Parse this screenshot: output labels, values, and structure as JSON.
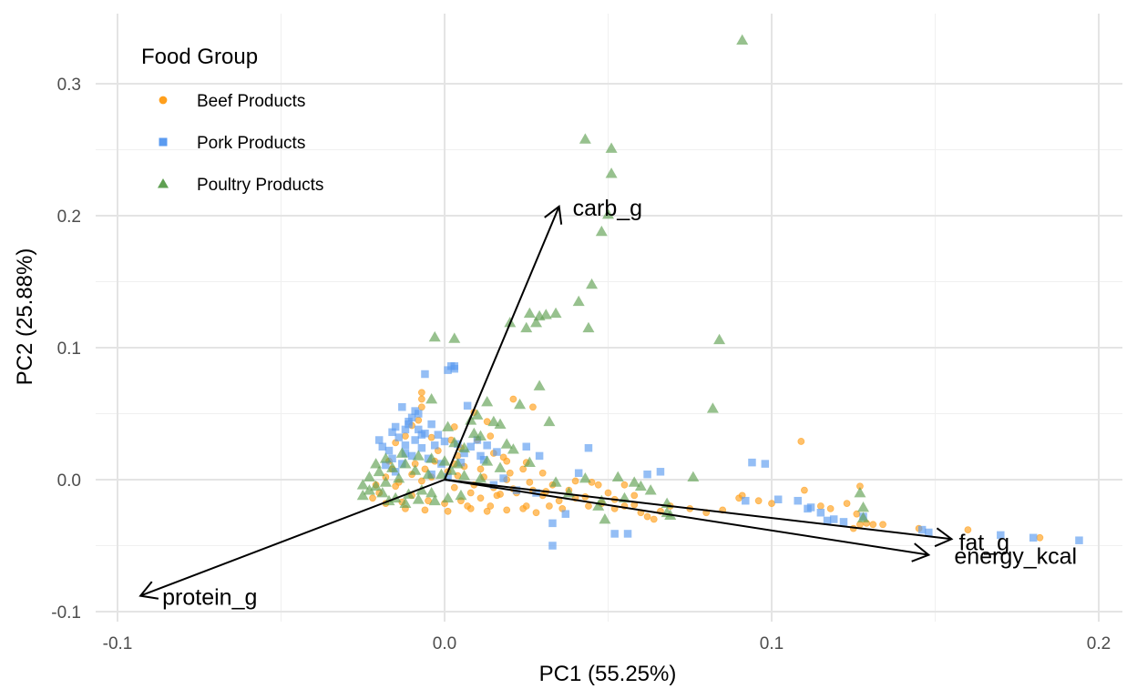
{
  "chart_data": {
    "type": "scatter",
    "subtype": "pca-biplot",
    "xlabel": "PC1 (55.25%)",
    "ylabel": "PC2 (25.88%)",
    "xlim": [
      -0.106,
      0.208
    ],
    "ylim": [
      -0.108,
      0.354
    ],
    "xticks": [
      -0.1,
      0.0,
      0.1,
      0.2
    ],
    "xtick_labels": [
      "-0.1",
      "0.0",
      "0.1",
      "0.2"
    ],
    "yticks": [
      -0.1,
      0.0,
      0.1,
      0.2,
      0.3
    ],
    "ytick_labels": [
      "-0.1",
      "0.0",
      "0.1",
      "0.2",
      "0.3"
    ],
    "grid": true,
    "legend": {
      "title": "Food Group",
      "position": "top-left",
      "entries": [
        "Beef Products",
        "Pork Products",
        "Poultry Products"
      ]
    },
    "series": [
      {
        "name": "Beef Products",
        "marker": "circle",
        "color": "#FF9F1C",
        "points": [
          [
            0.109,
            0.029
          ],
          [
            0.021,
            0.061
          ],
          [
            0.009,
            0.051
          ],
          [
            0.013,
            0.044
          ],
          [
            -0.007,
            0.066
          ],
          [
            -0.007,
            0.061
          ],
          [
            -0.007,
            0.055
          ],
          [
            0.025,
            0.013
          ],
          [
            0.03,
            0.005
          ],
          [
            0.04,
            -0.001
          ],
          [
            0.045,
            -0.002
          ],
          [
            0.047,
            -0.004
          ],
          [
            0.05,
            -0.01
          ],
          [
            0.055,
            -0.02
          ],
          [
            0.06,
            -0.025
          ],
          [
            0.062,
            -0.028
          ],
          [
            0.064,
            -0.03
          ],
          [
            0.035,
            -0.016
          ],
          [
            0.032,
            -0.02
          ],
          [
            0.028,
            -0.025
          ],
          [
            0.024,
            -0.022
          ],
          [
            0.09,
            -0.014
          ],
          [
            0.1,
            -0.018
          ],
          [
            0.11,
            -0.008
          ],
          [
            0.115,
            -0.02
          ],
          [
            0.118,
            -0.022
          ],
          [
            0.123,
            -0.018
          ],
          [
            0.126,
            -0.026
          ],
          [
            0.127,
            -0.034
          ],
          [
            0.129,
            -0.033
          ],
          [
            0.131,
            -0.034
          ],
          [
            0.145,
            -0.037
          ],
          [
            0.125,
            -0.037
          ],
          [
            0.127,
            -0.005
          ],
          [
            0.096,
            -0.016
          ],
          [
            0.055,
            -0.004
          ],
          [
            0.058,
            -0.012
          ],
          [
            0.015,
            0.02
          ],
          [
            0.018,
            0.017
          ],
          [
            0.005,
            0.024
          ],
          [
            0.01,
            0.03
          ],
          [
            0.003,
            0.04
          ],
          [
            -0.01,
            0.041
          ],
          [
            -0.015,
            0.028
          ],
          [
            -0.012,
            0.033
          ],
          [
            -0.004,
            0.032
          ],
          [
            0.002,
            0.03
          ],
          [
            -0.008,
            0.045
          ],
          [
            0.02,
            0.005
          ],
          [
            0.043,
            -0.013
          ],
          [
            0.048,
            -0.018
          ],
          [
            0.052,
            -0.015
          ],
          [
            0.069,
            -0.02
          ],
          [
            0.075,
            -0.022
          ],
          [
            0.08,
            -0.025
          ],
          [
            0.085,
            -0.023
          ],
          [
            0.027,
            0.055
          ],
          [
            0.014,
            0.033
          ],
          [
            0.003,
            0.012
          ],
          [
            0.008,
            -0.01
          ],
          [
            0.016,
            -0.012
          ],
          [
            0.022,
            -0.01
          ],
          [
            0.03,
            -0.012
          ],
          [
            0.038,
            -0.008
          ],
          [
            -0.018,
            0.002
          ],
          [
            -0.015,
            -0.005
          ],
          [
            -0.01,
            -0.012
          ],
          [
            -0.005,
            -0.016
          ],
          [
            0.0,
            -0.018
          ],
          [
            0.005,
            -0.016
          ],
          [
            0.011,
            -0.014
          ],
          [
            0.017,
            -0.011
          ],
          [
            -0.02,
            -0.01
          ],
          [
            -0.022,
            -0.014
          ],
          [
            -0.018,
            -0.018
          ],
          [
            -0.012,
            -0.022
          ],
          [
            -0.006,
            -0.023
          ],
          [
            0.001,
            -0.024
          ],
          [
            0.008,
            -0.022
          ],
          [
            0.014,
            -0.02
          ],
          [
            -0.016,
            0.008
          ],
          [
            -0.01,
            0.004
          ],
          [
            -0.004,
            0.002
          ],
          [
            0.004,
            0.003
          ],
          [
            0.012,
            0.002
          ],
          [
            0.019,
            0.0
          ],
          [
            0.026,
            -0.002
          ],
          [
            0.033,
            -0.004
          ],
          [
            -0.021,
            -0.004
          ],
          [
            -0.014,
            -0.002
          ],
          [
            -0.007,
            -0.001
          ],
          [
            0.003,
            -0.006
          ],
          [
            0.009,
            -0.004
          ],
          [
            0.015,
            -0.006
          ],
          [
            0.021,
            -0.007
          ],
          [
            0.027,
            -0.008
          ],
          [
            -0.009,
            0.012
          ],
          [
            -0.003,
            0.014
          ],
          [
            0.006,
            0.01
          ],
          [
            0.011,
            0.008
          ],
          [
            0.04,
            -0.014
          ],
          [
            0.044,
            -0.02
          ],
          [
            0.036,
            -0.022
          ],
          [
            0.031,
            -0.009
          ],
          [
            0.052,
            -0.022
          ],
          [
            0.058,
            -0.019
          ],
          [
            0.066,
            -0.024
          ],
          [
            0.019,
            0.014
          ],
          [
            -0.006,
            0.008
          ],
          [
            0.001,
            0.006
          ],
          [
            0.024,
            0.008
          ],
          [
            -0.017,
            0.014
          ],
          [
            0.007,
            -0.02
          ],
          [
            0.013,
            -0.024
          ],
          [
            0.019,
            -0.023
          ],
          [
            0.025,
            -0.02
          ],
          [
            -0.013,
            -0.017
          ],
          [
            0.004,
            0.018
          ],
          [
            -0.002,
            0.022
          ],
          [
            0.16,
            -0.038
          ],
          [
            0.134,
            -0.034
          ],
          [
            0.182,
            -0.044
          ],
          [
            0.091,
            -0.012
          ]
        ]
      },
      {
        "name": "Pork Products",
        "marker": "square",
        "color": "#5B9BF0",
        "points": [
          [
            0.002,
            0.086
          ],
          [
            0.003,
            0.086
          ],
          [
            0.001,
            0.083
          ],
          [
            0.003,
            0.084
          ],
          [
            -0.006,
            0.08
          ],
          [
            0.007,
            0.056
          ],
          [
            -0.013,
            0.055
          ],
          [
            -0.009,
            0.052
          ],
          [
            -0.008,
            0.05
          ],
          [
            -0.01,
            0.047
          ],
          [
            -0.011,
            0.042
          ],
          [
            -0.015,
            0.04
          ],
          [
            -0.012,
            0.038
          ],
          [
            -0.008,
            0.038
          ],
          [
            -0.004,
            0.042
          ],
          [
            -0.006,
            0.035
          ],
          [
            -0.009,
            0.03
          ],
          [
            -0.014,
            0.032
          ],
          [
            -0.019,
            0.025
          ],
          [
            -0.017,
            0.022
          ],
          [
            -0.012,
            0.026
          ],
          [
            -0.007,
            0.024
          ],
          [
            -0.003,
            0.026
          ],
          [
            0.0,
            0.029
          ],
          [
            0.004,
            0.027
          ],
          [
            0.008,
            0.025
          ],
          [
            0.01,
            0.03
          ],
          [
            0.013,
            0.026
          ],
          [
            0.016,
            0.021
          ],
          [
            0.025,
            0.025
          ],
          [
            0.044,
            0.024
          ],
          [
            0.098,
            0.012
          ],
          [
            0.094,
            0.013
          ],
          [
            0.066,
            0.006
          ],
          [
            0.062,
            0.004
          ],
          [
            0.092,
            -0.016
          ],
          [
            0.102,
            -0.015
          ],
          [
            0.108,
            -0.016
          ],
          [
            0.111,
            -0.022
          ],
          [
            0.112,
            -0.021
          ],
          [
            0.115,
            -0.025
          ],
          [
            0.117,
            -0.031
          ],
          [
            0.119,
            -0.03
          ],
          [
            0.122,
            -0.032
          ],
          [
            0.128,
            -0.028
          ],
          [
            0.146,
            -0.038
          ],
          [
            0.148,
            -0.04
          ],
          [
            0.17,
            -0.042
          ],
          [
            0.194,
            -0.046
          ],
          [
            0.18,
            -0.044
          ],
          [
            0.033,
            -0.033
          ],
          [
            0.037,
            -0.026
          ],
          [
            0.033,
            -0.05
          ],
          [
            0.052,
            -0.041
          ],
          [
            0.056,
            -0.041
          ],
          [
            0.018,
            0.001
          ],
          [
            -0.013,
            0.012
          ],
          [
            -0.018,
            0.011
          ],
          [
            -0.015,
            0.006
          ],
          [
            -0.01,
            0.018
          ],
          [
            -0.005,
            0.016
          ],
          [
            -0.001,
            0.012
          ],
          [
            0.005,
            0.013
          ],
          [
            -0.02,
            0.03
          ],
          [
            -0.016,
            0.036
          ],
          [
            -0.011,
            0.044
          ],
          [
            -0.007,
            0.034
          ],
          [
            -0.002,
            0.034
          ],
          [
            0.006,
            0.02
          ],
          [
            0.011,
            0.018
          ],
          [
            -0.016,
            0.016
          ],
          [
            -0.012,
            0.02
          ],
          [
            0.015,
            -0.004
          ],
          [
            0.022,
            -0.008
          ],
          [
            0.028,
            -0.01
          ],
          [
            0.029,
            0.018
          ],
          [
            0.041,
            0.005
          ],
          [
            0.012,
            0.015
          ],
          [
            -0.004,
            0.004
          ],
          [
            0.001,
            0.002
          ]
        ]
      },
      {
        "name": "Poultry Products",
        "marker": "triangle",
        "color": "#5FA052",
        "points": [
          [
            0.091,
            0.333
          ],
          [
            0.043,
            0.258
          ],
          [
            0.051,
            0.251
          ],
          [
            0.051,
            0.232
          ],
          [
            0.05,
            0.201
          ],
          [
            0.048,
            0.188
          ],
          [
            0.045,
            0.148
          ],
          [
            0.041,
            0.135
          ],
          [
            0.02,
            0.119
          ],
          [
            0.026,
            0.126
          ],
          [
            0.029,
            0.124
          ],
          [
            0.034,
            0.126
          ],
          [
            0.031,
            0.125
          ],
          [
            0.028,
            0.119
          ],
          [
            0.025,
            0.115
          ],
          [
            0.044,
            0.115
          ],
          [
            0.084,
            0.106
          ],
          [
            -0.003,
            0.108
          ],
          [
            0.003,
            0.107
          ],
          [
            0.082,
            0.054
          ],
          [
            0.029,
            0.071
          ],
          [
            0.023,
            0.057
          ],
          [
            -0.004,
            0.061
          ],
          [
            0.013,
            0.059
          ],
          [
            0.01,
            0.049
          ],
          [
            0.015,
            0.044
          ],
          [
            0.017,
            0.042
          ],
          [
            0.032,
            0.044
          ],
          [
            0.008,
            0.045
          ],
          [
            0.001,
            0.04
          ],
          [
            0.011,
            0.033
          ],
          [
            0.003,
            0.028
          ],
          [
            0.006,
            0.024
          ],
          [
            0.009,
            0.035
          ],
          [
            0.021,
            0.023
          ],
          [
            0.026,
            0.013
          ],
          [
            0.043,
            0.001
          ],
          [
            0.053,
            0.002
          ],
          [
            0.058,
            -0.002
          ],
          [
            0.06,
            -0.005
          ],
          [
            0.063,
            -0.008
          ],
          [
            0.068,
            -0.018
          ],
          [
            0.068,
            -0.025
          ],
          [
            0.069,
            -0.027
          ],
          [
            0.076,
            0.002
          ],
          [
            0.128,
            -0.021
          ],
          [
            0.128,
            -0.029
          ],
          [
            0.127,
            -0.01
          ],
          [
            0.048,
            -0.016
          ],
          [
            0.047,
            -0.02
          ],
          [
            0.049,
            -0.03
          ],
          [
            0.055,
            -0.014
          ],
          [
            0.034,
            -0.002
          ],
          [
            0.038,
            -0.01
          ],
          [
            -0.023,
            -0.008
          ],
          [
            -0.025,
            -0.012
          ],
          [
            -0.021,
            -0.005
          ],
          [
            -0.018,
            -0.002
          ],
          [
            -0.014,
            0.001
          ],
          [
            -0.02,
            0.006
          ],
          [
            -0.016,
            0.009
          ],
          [
            -0.012,
            0.012
          ],
          [
            -0.023,
            0.002
          ],
          [
            -0.009,
            0.007
          ],
          [
            -0.005,
            0.004
          ],
          [
            -0.001,
            0.004
          ],
          [
            0.002,
            0.007
          ],
          [
            0.006,
            0.003
          ],
          [
            0.011,
            0.001
          ],
          [
            -0.025,
            -0.004
          ],
          [
            -0.019,
            -0.01
          ],
          [
            -0.015,
            -0.014
          ],
          [
            -0.011,
            -0.011
          ],
          [
            -0.007,
            -0.008
          ],
          [
            -0.004,
            -0.01
          ],
          [
            0.001,
            -0.014
          ],
          [
            0.005,
            -0.012
          ],
          [
            -0.021,
            0.012
          ],
          [
            -0.018,
            0.016
          ],
          [
            -0.013,
            0.02
          ],
          [
            -0.008,
            0.018
          ],
          [
            -0.004,
            0.016
          ],
          [
            0.0,
            0.014
          ],
          [
            0.004,
            0.012
          ],
          [
            -0.017,
            -0.016
          ],
          [
            -0.012,
            -0.018
          ],
          [
            -0.008,
            -0.015
          ],
          [
            -0.003,
            -0.016
          ],
          [
            0.017,
            0.009
          ],
          [
            0.013,
            0.014
          ],
          [
            0.019,
            0.027
          ]
        ]
      }
    ],
    "loadings": [
      {
        "label": "carb_g",
        "x": 0.035,
        "y": 0.207
      },
      {
        "label": "fat_g",
        "x": 0.155,
        "y": -0.045
      },
      {
        "label": "energy_kcal",
        "x": 0.148,
        "y": -0.057
      },
      {
        "label": "protein_g",
        "x": -0.093,
        "y": -0.088
      }
    ]
  }
}
